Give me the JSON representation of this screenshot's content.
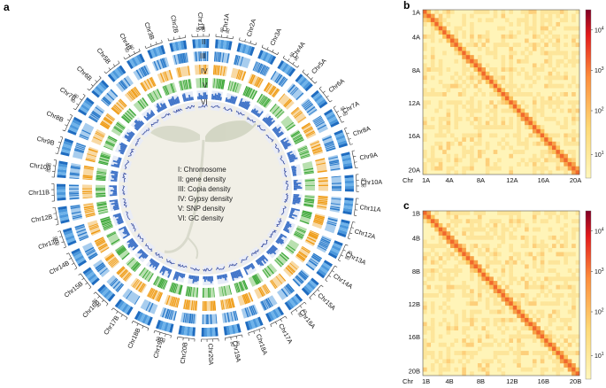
{
  "panels": {
    "a": "a",
    "b": "b",
    "c": "c"
  },
  "chart_data": [
    {
      "type": "circos",
      "panel": "a",
      "chromosomes": [
        "Chr1A",
        "Chr2A",
        "Chr3A",
        "Chr4A",
        "Chr5A",
        "Chr6A",
        "Chr7A",
        "Chr8A",
        "Chr9A",
        "Chr10A",
        "Chr11A",
        "Chr12A",
        "Chr13A",
        "Chr14A",
        "Chr15A",
        "Chr16A",
        "Chr17A",
        "Chr18A",
        "Chr19A",
        "Chr20A",
        "Chr20B",
        "Chr19B",
        "Chr18B",
        "Chr17B",
        "Chr16B",
        "Chr15B",
        "Chr14B",
        "Chr13B",
        "Chr12B",
        "Chr11B",
        "Chr10B",
        "Chr9B",
        "Chr8B",
        "Chr7B",
        "Chr6B",
        "Chr5B",
        "Chr4B",
        "Chr3B",
        "Chr2B",
        "Chr1B"
      ],
      "tick_labels": [
        "0",
        "40",
        "80",
        "120"
      ],
      "ring_numerals": [
        "I",
        "II",
        "III",
        "IV",
        "V",
        "VI"
      ],
      "legend": [
        "I: Chromosome",
        "II: gene density",
        "III: Copia density",
        "IV: Gypsy density",
        "V: SNP density",
        "VI: GC density"
      ],
      "track_colors": {
        "chromosome": "#2e7fd0",
        "gene": "#2979c9",
        "copia": "#ef9a12",
        "gypsy": "#3aa637",
        "snp": "#3f73c8",
        "gc": "#3a4fa0"
      }
    },
    {
      "type": "heatmap",
      "panel": "b",
      "title": "",
      "axis_label": "Chr",
      "tick_labels": [
        "1A",
        "4A",
        "8A",
        "12A",
        "16A",
        "20A"
      ],
      "colorbar_ticks": [
        "10^1",
        "10^2",
        "10^3",
        "10^4"
      ],
      "colorbar_base": "10",
      "colorbar_exponents": [
        "1",
        "2",
        "3",
        "4"
      ],
      "colors": [
        "#fff7bc",
        "#fed976",
        "#fd8d3c",
        "#e31a1c",
        "#800026"
      ]
    },
    {
      "type": "heatmap",
      "panel": "c",
      "title": "",
      "axis_label": "Chr",
      "tick_labels": [
        "1B",
        "4B",
        "8B",
        "12B",
        "16B",
        "20B"
      ],
      "colorbar_ticks": [
        "10^1",
        "10^2",
        "10^3",
        "10^4"
      ],
      "colorbar_base": "10",
      "colorbar_exponents": [
        "1",
        "2",
        "3",
        "4"
      ],
      "colors": [
        "#fff7bc",
        "#fed976",
        "#fd8d3c",
        "#e31a1c",
        "#800026"
      ]
    }
  ]
}
